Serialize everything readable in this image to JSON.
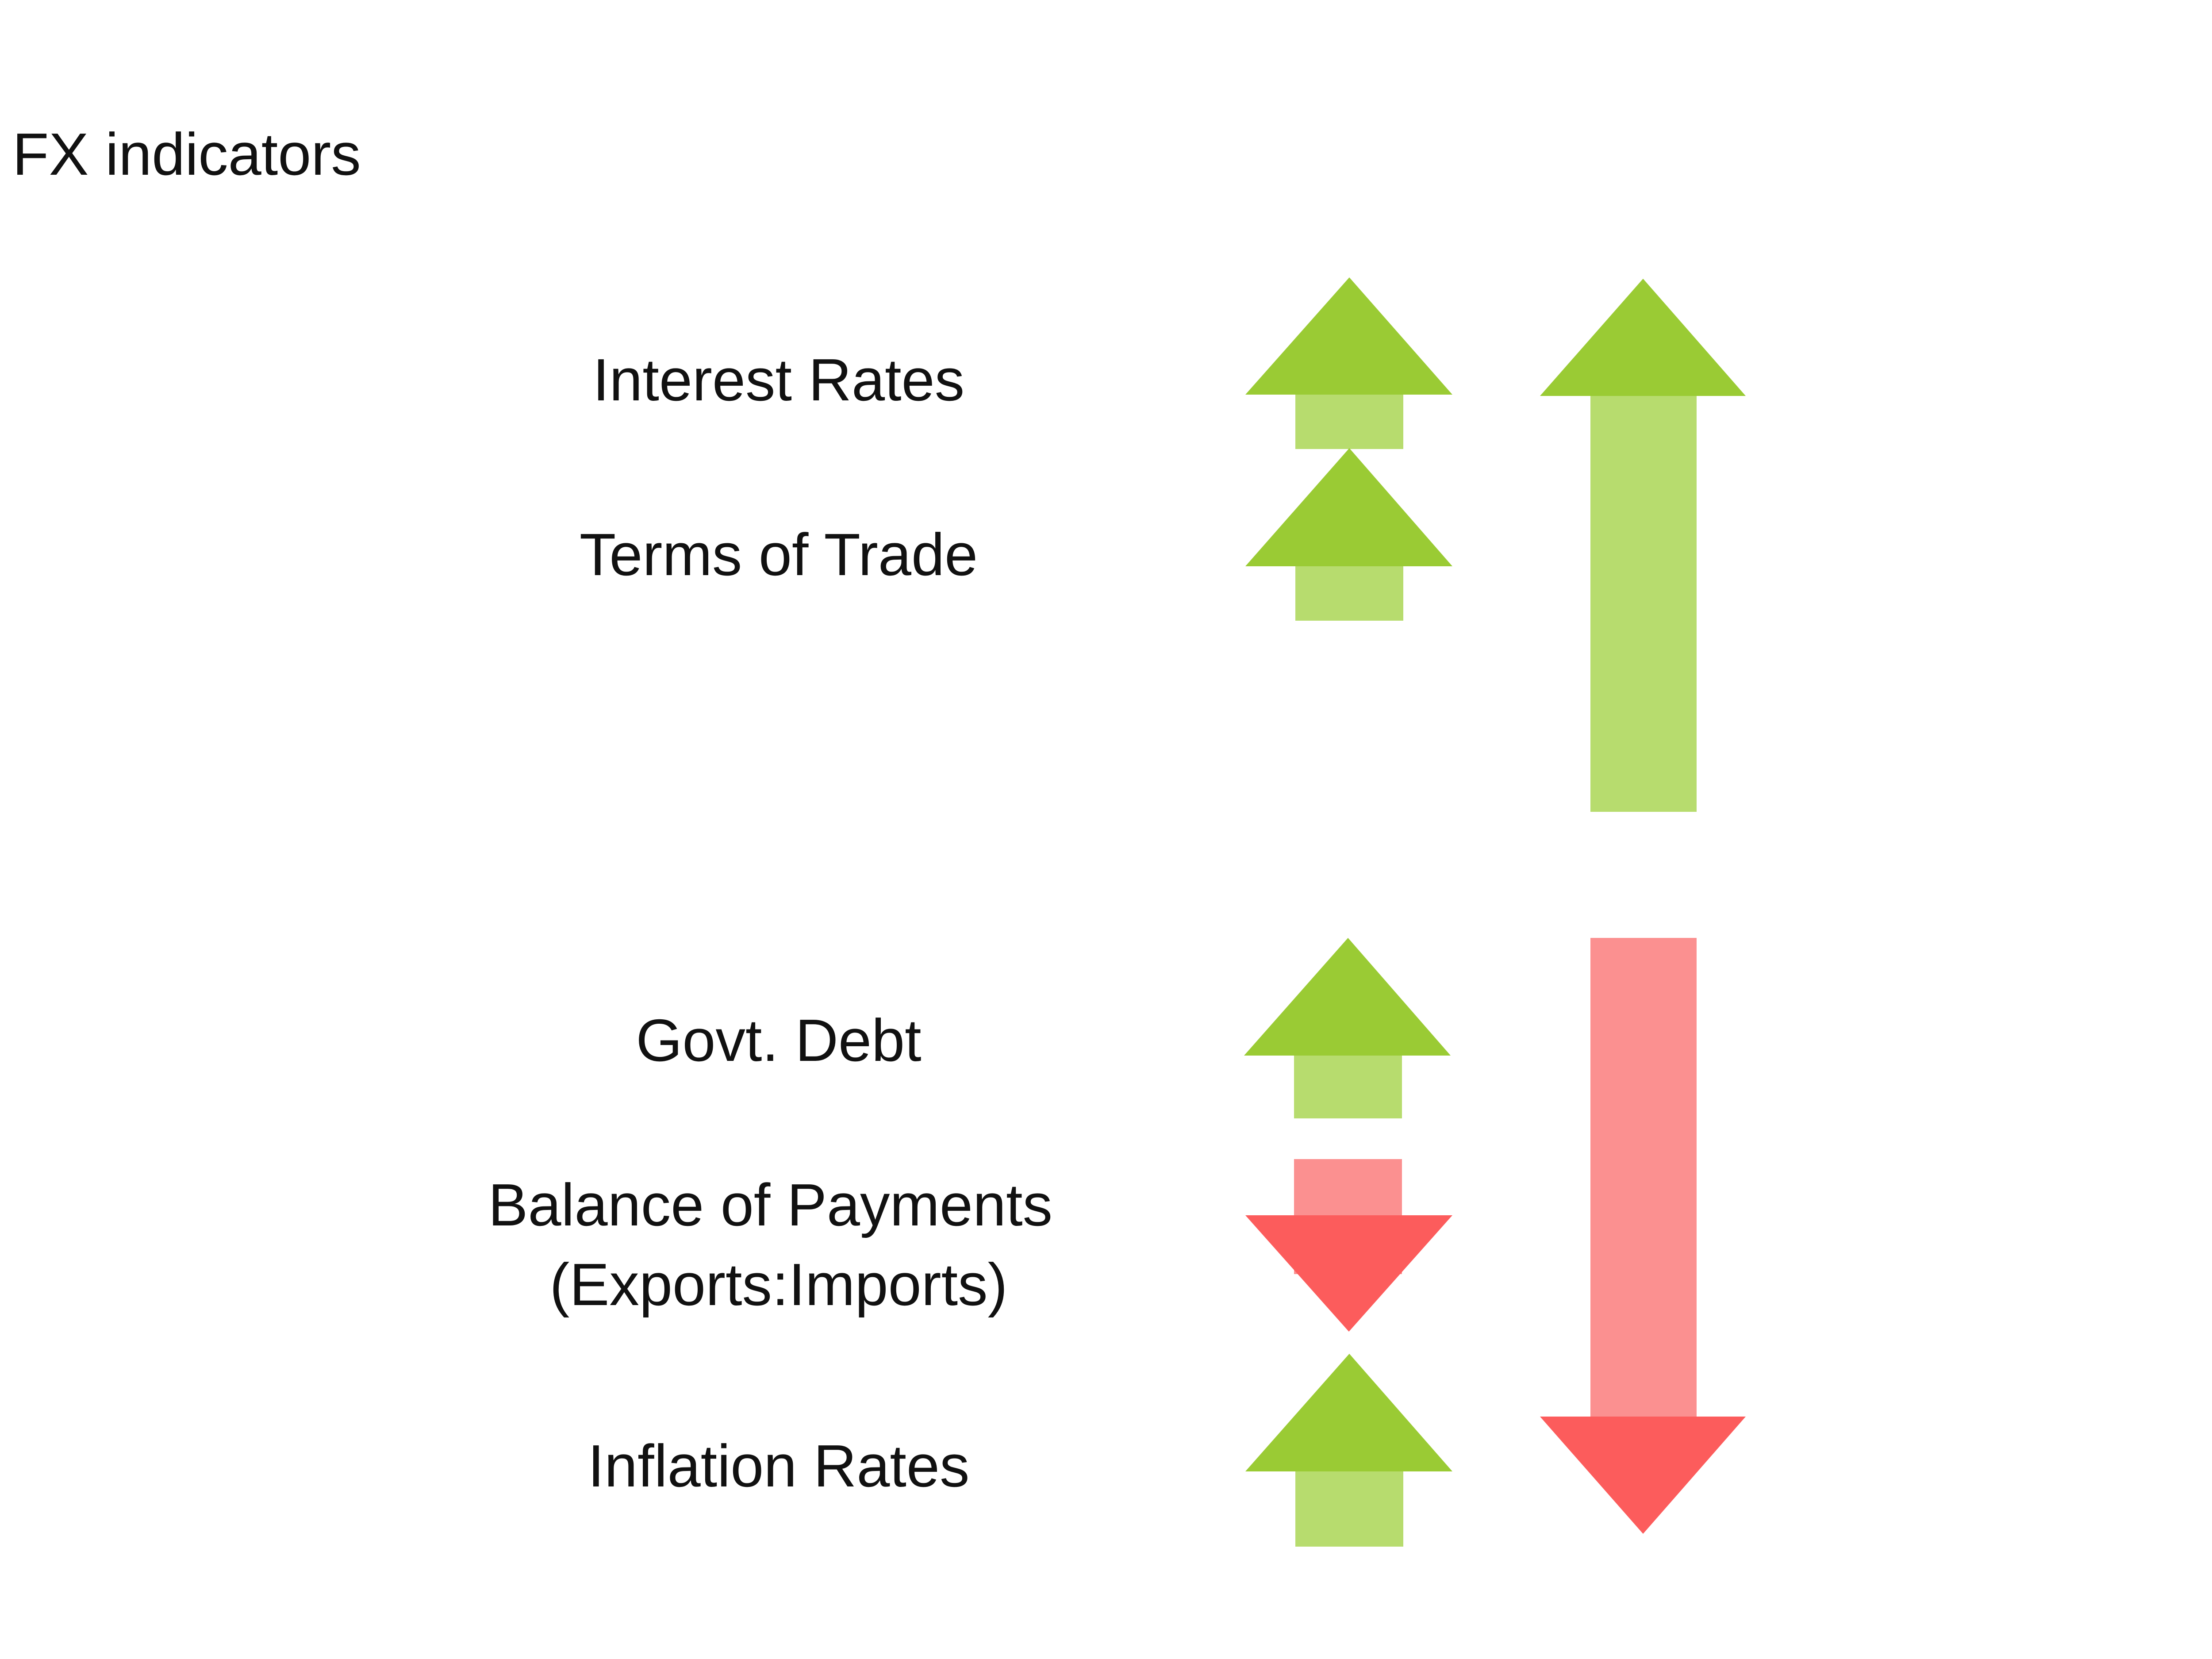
{
  "title": "FX indicators",
  "indicators": [
    {
      "label_lines": [
        "Interest Rates"
      ],
      "direction": "up"
    },
    {
      "label_lines": [
        "Terms of Trade"
      ],
      "direction": "up"
    },
    {
      "label_lines": [
        "Govt. Debt"
      ],
      "direction": "up"
    },
    {
      "label_lines": [
        "Balance of Payments",
        "(Exports:Imports)"
      ],
      "direction": "down"
    },
    {
      "label_lines": [
        "Inflation Rates"
      ],
      "direction": "up"
    }
  ],
  "summary_arrows": [
    {
      "direction": "up"
    },
    {
      "direction": "down"
    }
  ],
  "colors": {
    "up_head": "#9acb34",
    "up_shaft": "#b7dc6e",
    "down_head": "#fc5c5c",
    "down_shaft": "#fb9090",
    "text": "#111111"
  }
}
